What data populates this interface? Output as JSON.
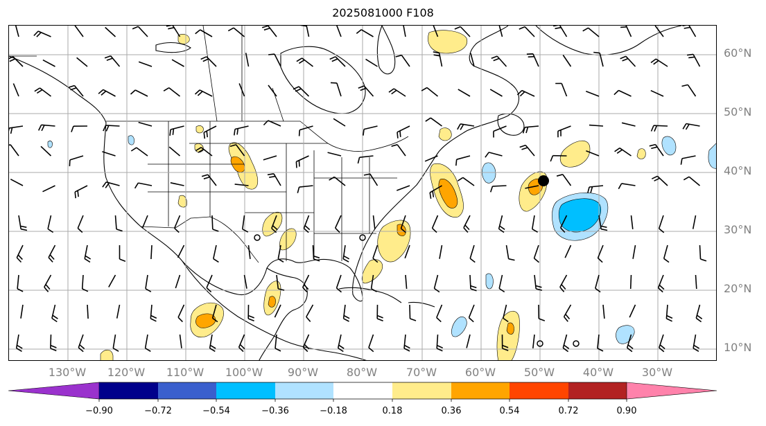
{
  "title": "2025081000 F108",
  "latitude_labels": [
    "60°N",
    "50°N",
    "40°N",
    "30°N",
    "20°N",
    "10°N"
  ],
  "longitude_labels": [
    "130°W",
    "120°W",
    "110°W",
    "100°W",
    "90°W",
    "80°W",
    "70°W",
    "60°W",
    "50°W",
    "40°W",
    "30°W"
  ],
  "colorbar": {
    "tick_labels": [
      "−0.90",
      "−0.72",
      "−0.54",
      "−0.36",
      "−0.18",
      "0.18",
      "0.36",
      "0.54",
      "0.72",
      "0.90"
    ],
    "colors": [
      "#9a32cd",
      "#00008b",
      "#3a5fcd",
      "#00bfff",
      "#b0e2ff",
      "#ffffff",
      "#ffec8b",
      "#ffa500",
      "#ff4500",
      "#b22222",
      "#ff82ab"
    ]
  },
  "colors": {
    "positive_light": "#ffec8b",
    "positive_mid": "#ffa500",
    "negative_light": "#b0e2ff",
    "negative_mid": "#00bfff",
    "gridline": "#aaaaaa",
    "label_gray": "#808080"
  }
}
